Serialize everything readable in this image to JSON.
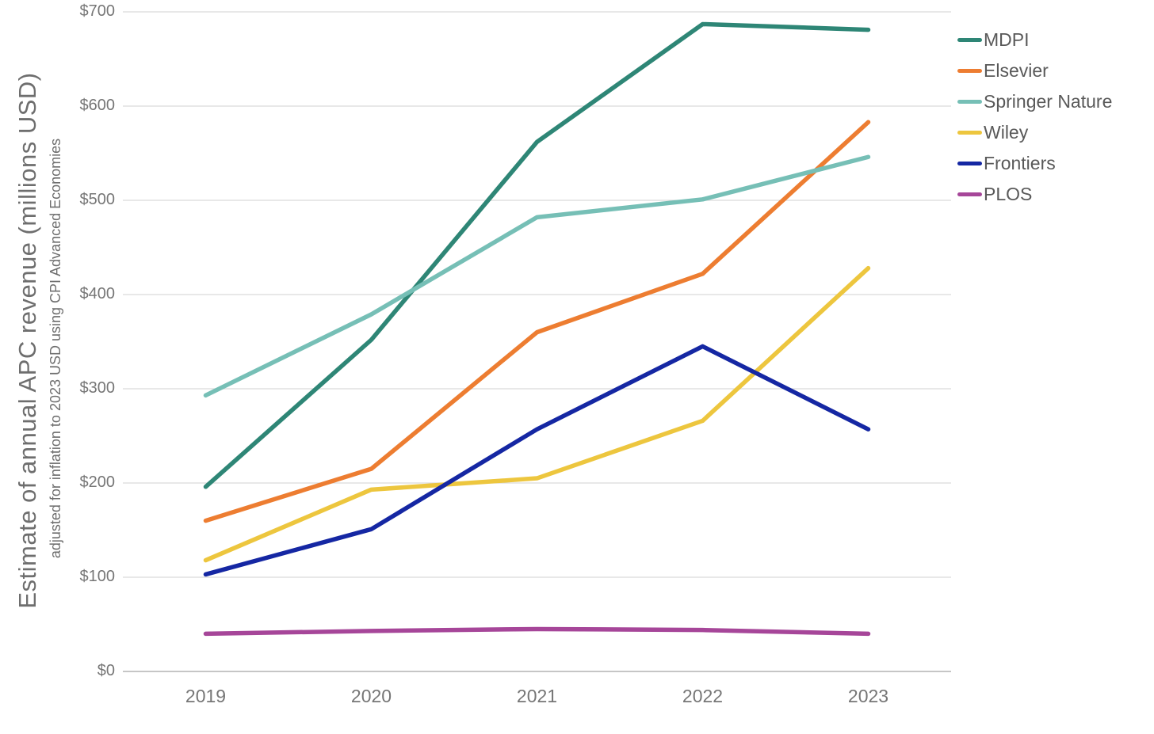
{
  "chart_data": {
    "type": "line",
    "ylabel": "Estimate of annual APC revenue (millions USD)",
    "ylabel_sub": "adjusted for inflation to 2023 USD using CPI Advanced Economies",
    "x": [
      "2019",
      "2020",
      "2021",
      "2022",
      "2023"
    ],
    "series": [
      {
        "name": "MDPI",
        "color": "#2E8676",
        "values": [
          196,
          352,
          562,
          687,
          681
        ]
      },
      {
        "name": "Elsevier",
        "color": "#ED7D31",
        "values": [
          160,
          215,
          360,
          422,
          583
        ]
      },
      {
        "name": "Springer Nature",
        "color": "#76BFB6",
        "values": [
          293,
          379,
          482,
          501,
          546
        ]
      },
      {
        "name": "Wiley",
        "color": "#EDC63E",
        "values": [
          118,
          193,
          205,
          266,
          428
        ]
      },
      {
        "name": "Frontiers",
        "color": "#1527A3",
        "values": [
          103,
          151,
          257,
          345,
          257
        ]
      },
      {
        "name": "PLOS",
        "color": "#A64699",
        "values": [
          40,
          43,
          45,
          44,
          40
        ]
      }
    ],
    "y_ticks": [
      "$0",
      "$100",
      "$200",
      "$300",
      "$400",
      "$500",
      "$600",
      "$700"
    ],
    "ylim": [
      0,
      700
    ],
    "grid": true,
    "legend_position": "right",
    "colors": {
      "gridline": "#D9D9D9",
      "axis_line": "#C6C6C6",
      "tick_text": "#767676",
      "title_text": "#6e6e6e",
      "legend_text": "#595959"
    }
  }
}
